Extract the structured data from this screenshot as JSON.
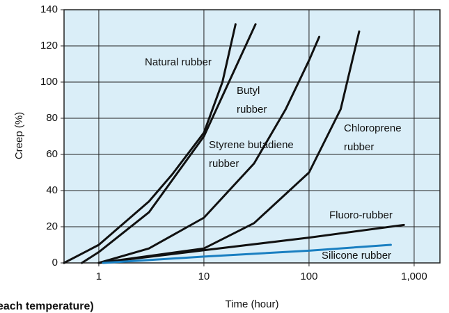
{
  "chart_data": {
    "type": "line",
    "x_label": "Time (hour)",
    "y_label": "Creep (%)",
    "footer": "each temperature)",
    "xscale": "log",
    "xlim": [
      0.467,
      1760
    ],
    "xticks": [
      1,
      10,
      100,
      {
        "value": 1000,
        "label": "1,000"
      }
    ],
    "ylim": [
      0,
      140
    ],
    "yticks": [
      0,
      20,
      40,
      60,
      80,
      100,
      120,
      140
    ],
    "grid": true,
    "series": [
      {
        "name": "Natural rubber",
        "color": "#111111",
        "x": [
          0.467,
          1,
          3,
          5,
          10,
          15,
          20
        ],
        "values": [
          0,
          10,
          34,
          49,
          72,
          100,
          132
        ]
      },
      {
        "name": "Butyl rubber",
        "color": "#111111",
        "x": [
          0.69,
          1,
          3,
          10,
          20,
          31
        ],
        "values": [
          0,
          6,
          28,
          70,
          108,
          132
        ]
      },
      {
        "name": "Styrene butadiene rubber",
        "color": "#111111",
        "x": [
          1,
          3,
          10,
          30,
          60,
          100,
          125
        ],
        "values": [
          0,
          8,
          25,
          55,
          85,
          112,
          125
        ]
      },
      {
        "name": "Chloroprene rubber",
        "color": "#111111",
        "x": [
          1,
          10,
          30,
          100,
          200,
          300
        ],
        "values": [
          0,
          8,
          22,
          50,
          85,
          128
        ]
      },
      {
        "name": "Fluoro-rubber",
        "color": "#111111",
        "x": [
          1,
          10,
          100,
          800
        ],
        "values": [
          0,
          7,
          14,
          21
        ]
      },
      {
        "name": "Silicone rubber",
        "color": "#1a7fc1",
        "x": [
          1.1,
          10,
          100,
          600
        ],
        "values": [
          0,
          3.5,
          6.8,
          10
        ]
      }
    ]
  }
}
